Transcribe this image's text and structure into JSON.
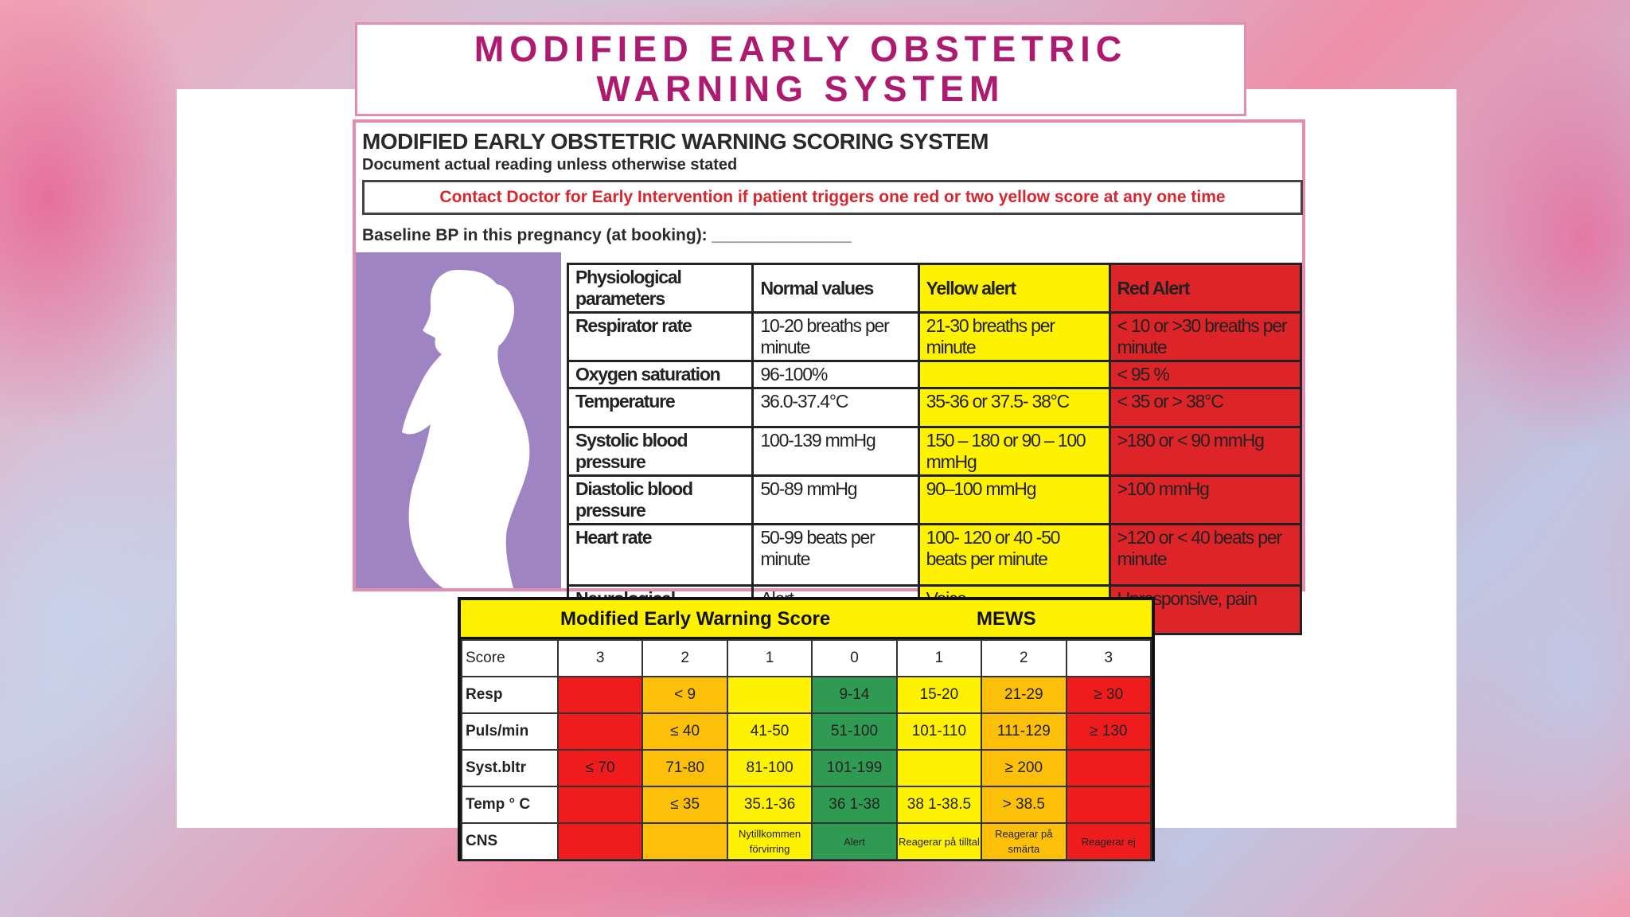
{
  "slide": {
    "title": "MODIFIED EARLY OBSTETRIC WARNING SYSTEM"
  },
  "meows_chart": {
    "heading": "MODIFIED EARLY OBSTETRIC WARNING SCORING SYSTEM",
    "subheading": "Document actual reading unless otherwise stated",
    "alert": "Contact Doctor for Early Intervention if patient triggers one red or two yellow score at any one time",
    "baseline": "Baseline BP in this pregnancy (at booking): _______________",
    "columns": [
      "Physiological parameters",
      "Normal values",
      "Yellow alert",
      "Red Alert"
    ],
    "rows": [
      {
        "param": "Respirator rate",
        "normal": "10-20 breaths per minute",
        "yellow": "21-30 breaths per minute",
        "red": "< 10 or >30 breaths per minute"
      },
      {
        "param": "Oxygen saturation",
        "normal": "96-100%",
        "yellow": "",
        "red": "< 95 %"
      },
      {
        "param": "Temperature",
        "normal": "36.0-37.4°C",
        "yellow": "35-36 or 37.5- 38°C",
        "red": "< 35 or > 38°C"
      },
      {
        "param": "Systolic blood pressure",
        "normal": "100-139 mmHg",
        "yellow": "150 – 180 or 90 – 100 mmHg",
        "red": ">180 or < 90 mmHg"
      },
      {
        "param": "Diastolic blood pressure",
        "normal": "50-89 mmHg",
        "yellow": "90–100 mmHg",
        "red": ">100 mmHg"
      },
      {
        "param": "Heart rate",
        "normal": "50-99 beats per minute",
        "yellow": "100- 120 or 40 -50 beats per minute",
        "red": ">120 or < 40 beats per minute"
      },
      {
        "param": "Neurological response",
        "normal": "Alert",
        "yellow": "Voice",
        "red": "Unresponsive, pain"
      }
    ]
  },
  "mews_table": {
    "title": "Modified Early Warning Score",
    "abbrev": "MEWS",
    "score_label": "Score",
    "scores": [
      "3",
      "2",
      "1",
      "0",
      "1",
      "2",
      "3"
    ],
    "rows": [
      {
        "label": "Resp",
        "cells": [
          "",
          "< 9",
          "",
          "9-14",
          "15-20",
          "21-29",
          "≥ 30"
        ]
      },
      {
        "label": "Puls/min",
        "cells": [
          "",
          "≤ 40",
          "41-50",
          "51-100",
          "101-110",
          "111-129",
          "≥ 130"
        ]
      },
      {
        "label": "Syst.bltr",
        "cells": [
          "≤ 70",
          "71-80",
          "81-100",
          "101-199",
          "",
          "≥ 200",
          ""
        ]
      },
      {
        "label": "Temp ° C",
        "cells": [
          "",
          "≤ 35",
          "35.1-36",
          "36 1-38",
          "38 1-38.5",
          "> 38.5",
          ""
        ]
      },
      {
        "label": "CNS",
        "cells": [
          "",
          "",
          "Nytillkommen förvirring",
          "Alert",
          "Reagerar på tilltal",
          "Reagerar på smärta",
          "Reagerar ej"
        ]
      }
    ],
    "colors": {
      "red": "#ee1c1c",
      "orange": "#fcc00a",
      "yellow": "#fff200",
      "green": "#2f9a52"
    }
  }
}
